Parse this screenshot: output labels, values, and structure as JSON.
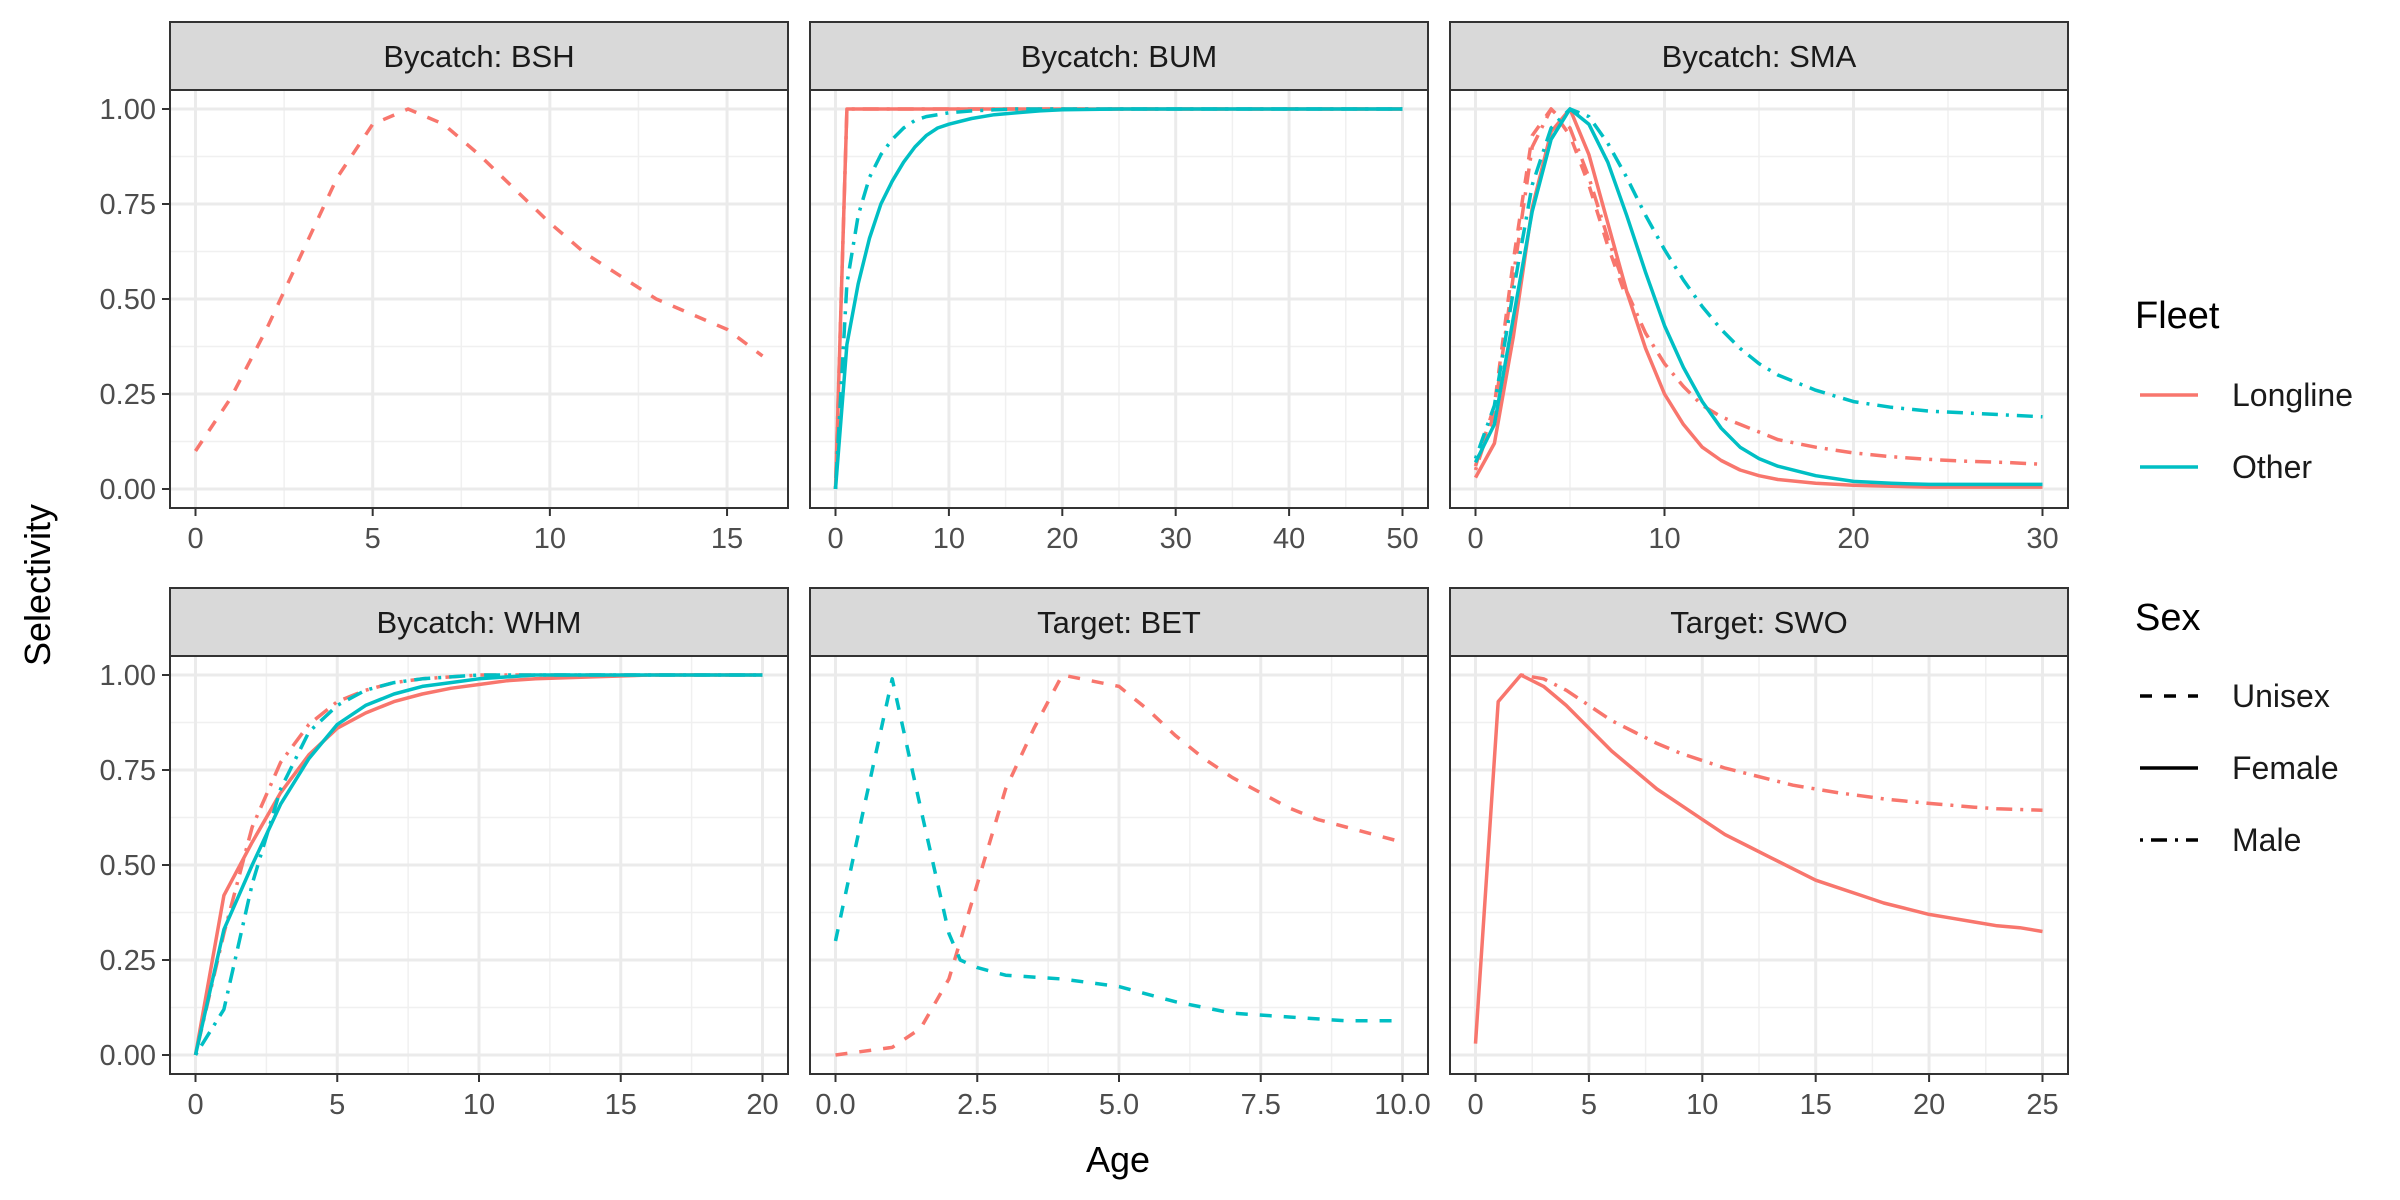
{
  "colors": {
    "Longline": "#F8766D",
    "Other": "#00BFC4"
  },
  "axis": {
    "xlabel": "Age",
    "ylabel": "Selectivity",
    "yticks": [
      "0.00",
      "0.25",
      "0.50",
      "0.75",
      "1.00"
    ]
  },
  "legend": {
    "fleet_title": "Fleet",
    "fleet_items": [
      {
        "label": "Longline",
        "color": "#F8766D"
      },
      {
        "label": "Other",
        "color": "#00BFC4"
      }
    ],
    "sex_title": "Sex",
    "sex_items": [
      {
        "label": "Unisex",
        "dash": "dashed"
      },
      {
        "label": "Female",
        "dash": "solid"
      },
      {
        "label": "Male",
        "dash": "dotdash"
      }
    ]
  },
  "chart_data": [
    {
      "type": "line",
      "title": "Bycatch: BSH",
      "xlim": [
        0,
        16
      ],
      "ylim": [
        0,
        1
      ],
      "xticks": [
        0,
        5,
        10,
        15
      ],
      "xtick_labels": [
        "0",
        "5",
        "10",
        "15"
      ],
      "series": [
        {
          "fleet": "Longline",
          "sex": "Unisex",
          "x": [
            0,
            1,
            2,
            3,
            4,
            5,
            6,
            7,
            8,
            9,
            10,
            11,
            12,
            13,
            14,
            15,
            16
          ],
          "y": [
            0.1,
            0.24,
            0.42,
            0.62,
            0.82,
            0.96,
            1.0,
            0.96,
            0.88,
            0.79,
            0.7,
            0.62,
            0.56,
            0.5,
            0.46,
            0.42,
            0.35
          ]
        }
      ]
    },
    {
      "type": "line",
      "title": "Bycatch: BUM",
      "xlim": [
        0,
        50
      ],
      "ylim": [
        0,
        1
      ],
      "xticks": [
        0,
        10,
        20,
        30,
        40,
        50
      ],
      "xtick_labels": [
        "0",
        "10",
        "20",
        "30",
        "40",
        "50"
      ],
      "series": [
        {
          "fleet": "Longline",
          "sex": "Female",
          "x": [
            0,
            1,
            2,
            5,
            10,
            20,
            30,
            40,
            50
          ],
          "y": [
            0.0,
            1.0,
            1.0,
            1.0,
            1.0,
            1.0,
            1.0,
            1.0,
            1.0
          ]
        },
        {
          "fleet": "Longline",
          "sex": "Male",
          "x": [
            0,
            1,
            2,
            5,
            10,
            20,
            30,
            40,
            50
          ],
          "y": [
            0.0,
            1.0,
            1.0,
            1.0,
            1.0,
            1.0,
            1.0,
            1.0,
            1.0
          ]
        },
        {
          "fleet": "Other",
          "sex": "Female",
          "x": [
            0,
            1,
            2,
            3,
            4,
            5,
            6,
            7,
            8,
            9,
            10,
            12,
            14,
            16,
            18,
            20,
            25,
            30,
            35,
            40,
            45,
            50
          ],
          "y": [
            0.0,
            0.38,
            0.54,
            0.66,
            0.75,
            0.81,
            0.86,
            0.9,
            0.93,
            0.95,
            0.96,
            0.975,
            0.985,
            0.99,
            0.995,
            0.998,
            1.0,
            1.0,
            1.0,
            1.0,
            1.0,
            1.0
          ]
        },
        {
          "fleet": "Other",
          "sex": "Male",
          "x": [
            0,
            1,
            2,
            3,
            4,
            5,
            6,
            7,
            8,
            9,
            10,
            12,
            14,
            16,
            18,
            20,
            25,
            30,
            35,
            40,
            45,
            50
          ],
          "y": [
            0.0,
            0.54,
            0.72,
            0.82,
            0.88,
            0.92,
            0.95,
            0.97,
            0.98,
            0.985,
            0.99,
            0.995,
            0.998,
            1.0,
            1.0,
            1.0,
            1.0,
            1.0,
            1.0,
            1.0,
            1.0,
            1.0
          ]
        }
      ]
    },
    {
      "type": "line",
      "title": "Bycatch: SMA",
      "xlim": [
        0,
        30
      ],
      "ylim": [
        0,
        1
      ],
      "xticks": [
        0,
        10,
        20,
        30
      ],
      "xtick_labels": [
        "0",
        "10",
        "20",
        "30"
      ],
      "series": [
        {
          "fleet": "Longline",
          "sex": "Female",
          "x": [
            0,
            1,
            2,
            3,
            4,
            5,
            6,
            7,
            8,
            9,
            10,
            11,
            12,
            13,
            14,
            15,
            16,
            18,
            20,
            22,
            24,
            26,
            28,
            30
          ],
          "y": [
            0.03,
            0.12,
            0.4,
            0.74,
            0.94,
            1.0,
            0.88,
            0.7,
            0.52,
            0.37,
            0.25,
            0.17,
            0.11,
            0.075,
            0.05,
            0.035,
            0.025,
            0.015,
            0.01,
            0.007,
            0.005,
            0.005,
            0.005,
            0.005
          ]
        },
        {
          "fleet": "Longline",
          "sex": "Male",
          "x": [
            0,
            1,
            2,
            3,
            4,
            5,
            6,
            7,
            8,
            9,
            10,
            11,
            12,
            13,
            14,
            15,
            16,
            18,
            20,
            22,
            24,
            26,
            28,
            30
          ],
          "y": [
            0.05,
            0.2,
            0.56,
            0.9,
            1.0,
            0.95,
            0.82,
            0.66,
            0.52,
            0.41,
            0.33,
            0.27,
            0.22,
            0.19,
            0.17,
            0.15,
            0.13,
            0.11,
            0.095,
            0.085,
            0.078,
            0.073,
            0.07,
            0.065
          ]
        },
        {
          "fleet": "Longline",
          "sex": "Unisex",
          "x": [
            0,
            1,
            2,
            3,
            4,
            5,
            6,
            7,
            8
          ],
          "y": [
            0.06,
            0.22,
            0.6,
            0.93,
            1.0,
            0.93,
            0.8,
            0.64,
            0.5
          ]
        },
        {
          "fleet": "Other",
          "sex": "Female",
          "x": [
            0,
            1,
            2,
            3,
            4,
            5,
            6,
            7,
            8,
            9,
            10,
            11,
            12,
            13,
            14,
            15,
            16,
            18,
            20,
            22,
            24,
            26,
            28,
            30
          ],
          "y": [
            0.07,
            0.17,
            0.45,
            0.73,
            0.92,
            1.0,
            0.96,
            0.86,
            0.72,
            0.57,
            0.43,
            0.32,
            0.23,
            0.16,
            0.11,
            0.08,
            0.06,
            0.035,
            0.02,
            0.015,
            0.012,
            0.012,
            0.012,
            0.012
          ]
        },
        {
          "fleet": "Other",
          "sex": "Male",
          "x": [
            0,
            1,
            2,
            3,
            4,
            5,
            6,
            7,
            8,
            9,
            10,
            11,
            12,
            13,
            14,
            15,
            16,
            18,
            20,
            22,
            24,
            26,
            28,
            30
          ],
          "y": [
            0.08,
            0.22,
            0.52,
            0.8,
            0.95,
            1.0,
            0.98,
            0.91,
            0.82,
            0.72,
            0.63,
            0.55,
            0.48,
            0.42,
            0.37,
            0.33,
            0.3,
            0.26,
            0.23,
            0.215,
            0.205,
            0.2,
            0.195,
            0.19
          ]
        }
      ]
    },
    {
      "type": "line",
      "title": "Bycatch: WHM",
      "xlim": [
        0,
        20
      ],
      "ylim": [
        0,
        1
      ],
      "xticks": [
        0,
        5,
        10,
        15,
        20
      ],
      "xtick_labels": [
        "0",
        "5",
        "10",
        "15",
        "20"
      ],
      "series": [
        {
          "fleet": "Longline",
          "sex": "Female",
          "x": [
            0,
            1,
            2,
            3,
            4,
            5,
            6,
            7,
            8,
            9,
            10,
            11,
            12,
            14,
            16,
            18,
            20
          ],
          "y": [
            0.0,
            0.42,
            0.56,
            0.69,
            0.79,
            0.86,
            0.9,
            0.93,
            0.95,
            0.965,
            0.975,
            0.985,
            0.99,
            0.995,
            1.0,
            1.0,
            1.0
          ]
        },
        {
          "fleet": "Longline",
          "sex": "Male",
          "x": [
            0,
            1,
            2,
            3,
            4,
            5,
            6,
            7,
            8,
            9,
            10,
            11,
            12,
            14,
            16,
            18,
            20
          ],
          "y": [
            0.0,
            0.32,
            0.6,
            0.77,
            0.87,
            0.93,
            0.96,
            0.98,
            0.99,
            0.995,
            1.0,
            1.0,
            1.0,
            1.0,
            1.0,
            1.0,
            1.0
          ]
        },
        {
          "fleet": "Other",
          "sex": "Female",
          "x": [
            0,
            1,
            2,
            3,
            4,
            5,
            6,
            7,
            8,
            9,
            10,
            11,
            12,
            14,
            16,
            18,
            20
          ],
          "y": [
            0.0,
            0.33,
            0.5,
            0.66,
            0.78,
            0.87,
            0.92,
            0.95,
            0.97,
            0.98,
            0.99,
            0.995,
            1.0,
            1.0,
            1.0,
            1.0,
            1.0
          ]
        },
        {
          "fleet": "Other",
          "sex": "Male",
          "x": [
            0,
            1,
            2,
            3,
            4,
            5,
            6,
            7,
            8,
            9,
            10,
            11,
            12,
            14,
            16,
            18,
            20
          ],
          "y": [
            0.0,
            0.12,
            0.45,
            0.7,
            0.85,
            0.92,
            0.96,
            0.98,
            0.99,
            0.995,
            1.0,
            1.0,
            1.0,
            1.0,
            1.0,
            1.0,
            1.0
          ]
        }
      ]
    },
    {
      "type": "line",
      "title": "Target: BET",
      "xlim": [
        0,
        10
      ],
      "ylim": [
        0,
        1
      ],
      "xticks": [
        0,
        2.5,
        5,
        7.5,
        10
      ],
      "xtick_labels": [
        "0.0",
        "2.5",
        "5.0",
        "7.5",
        "10.0"
      ],
      "series": [
        {
          "fleet": "Longline",
          "sex": "Unisex",
          "x": [
            0,
            1,
            1.5,
            2,
            2.5,
            3,
            3.5,
            4,
            5,
            5.5,
            6,
            6.5,
            7,
            7.5,
            8,
            8.5,
            9,
            10
          ],
          "y": [
            0.0,
            0.02,
            0.07,
            0.2,
            0.45,
            0.7,
            0.86,
            1.0,
            0.97,
            0.91,
            0.84,
            0.78,
            0.73,
            0.69,
            0.65,
            0.62,
            0.6,
            0.56
          ]
        },
        {
          "fleet": "Other",
          "sex": "Unisex",
          "x": [
            0,
            0.5,
            1,
            1.5,
            2,
            2.2,
            2.5,
            3,
            4,
            5,
            6,
            7,
            8,
            9,
            10
          ],
          "y": [
            0.3,
            0.65,
            0.99,
            0.65,
            0.32,
            0.25,
            0.23,
            0.21,
            0.2,
            0.18,
            0.14,
            0.11,
            0.1,
            0.09,
            0.09
          ]
        }
      ]
    },
    {
      "type": "line",
      "title": "Target: SWO",
      "xlim": [
        0,
        25
      ],
      "ylim": [
        0,
        1
      ],
      "xticks": [
        0,
        5,
        10,
        15,
        20,
        25
      ],
      "xtick_labels": [
        "0",
        "5",
        "10",
        "15",
        "20",
        "25"
      ],
      "series": [
        {
          "fleet": "Longline",
          "sex": "Female",
          "x": [
            0,
            1,
            2,
            3,
            4,
            5,
            6,
            7,
            8,
            9,
            10,
            11,
            12,
            13,
            14,
            15,
            16,
            17,
            18,
            19,
            20,
            21,
            22,
            23,
            24,
            25
          ],
          "y": [
            0.03,
            0.93,
            1.0,
            0.97,
            0.92,
            0.86,
            0.8,
            0.75,
            0.7,
            0.66,
            0.62,
            0.58,
            0.55,
            0.52,
            0.49,
            0.46,
            0.44,
            0.42,
            0.4,
            0.385,
            0.37,
            0.36,
            0.35,
            0.34,
            0.335,
            0.325
          ]
        },
        {
          "fleet": "Longline",
          "sex": "Male",
          "x": [
            2,
            3,
            4,
            5,
            6,
            7,
            8,
            9,
            10,
            11,
            12,
            13,
            14,
            15,
            16,
            17,
            18,
            19,
            20,
            21,
            22,
            23,
            24,
            25
          ],
          "y": [
            1.0,
            0.99,
            0.96,
            0.92,
            0.88,
            0.85,
            0.82,
            0.795,
            0.775,
            0.755,
            0.74,
            0.725,
            0.71,
            0.7,
            0.69,
            0.682,
            0.674,
            0.668,
            0.662,
            0.657,
            0.652,
            0.648,
            0.646,
            0.644
          ]
        }
      ]
    }
  ]
}
